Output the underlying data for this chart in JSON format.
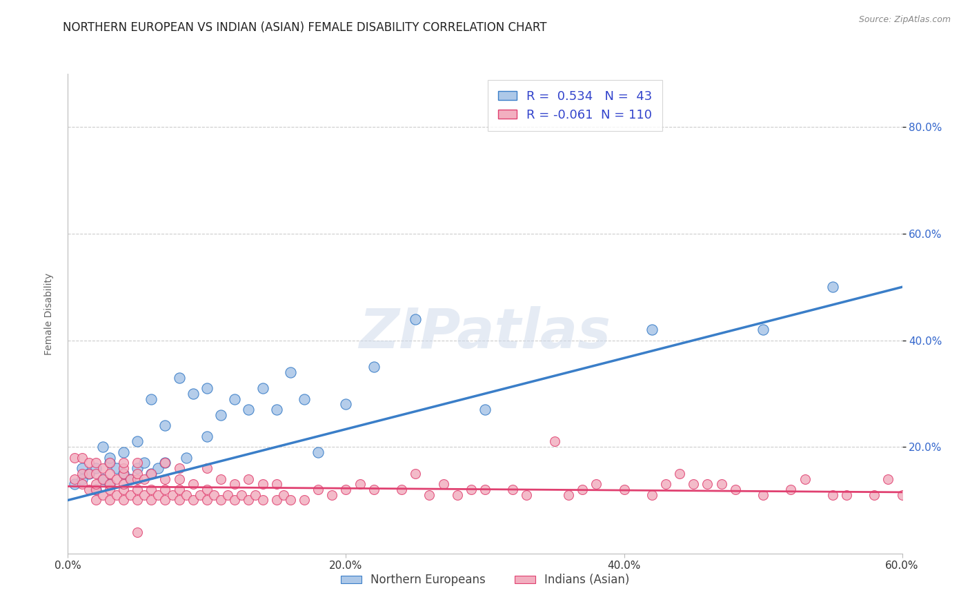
{
  "title": "NORTHERN EUROPEAN VS INDIAN (ASIAN) FEMALE DISABILITY CORRELATION CHART",
  "source_text": "Source: ZipAtlas.com",
  "ylabel": "Female Disability",
  "xlim": [
    0.0,
    0.6
  ],
  "ylim": [
    0.0,
    0.9
  ],
  "xtick_labels": [
    "0.0%",
    "",
    "20.0%",
    "",
    "40.0%",
    "",
    "60.0%"
  ],
  "xtick_vals": [
    0.0,
    0.1,
    0.2,
    0.3,
    0.4,
    0.5,
    0.6
  ],
  "ytick_labels": [
    "20.0%",
    "40.0%",
    "60.0%",
    "80.0%"
  ],
  "ytick_vals": [
    0.2,
    0.4,
    0.6,
    0.8
  ],
  "watermark": "ZIPatlas",
  "legend_label1": "Northern Europeans",
  "legend_label2": "Indians (Asian)",
  "R1": 0.534,
  "N1": 43,
  "R2": -0.061,
  "N2": 110,
  "color1": "#adc8e8",
  "color2": "#f2afc0",
  "line_color1": "#3a7ec8",
  "line_color2": "#e04070",
  "title_fontsize": 12,
  "axis_label_fontsize": 10,
  "tick_fontsize": 11,
  "background_color": "#ffffff",
  "grid_color": "#cccccc",
  "blue_scatter_x": [
    0.005,
    0.01,
    0.01,
    0.015,
    0.02,
    0.02,
    0.025,
    0.025,
    0.03,
    0.03,
    0.03,
    0.035,
    0.04,
    0.04,
    0.045,
    0.05,
    0.05,
    0.055,
    0.06,
    0.06,
    0.065,
    0.07,
    0.07,
    0.08,
    0.085,
    0.09,
    0.1,
    0.1,
    0.11,
    0.12,
    0.13,
    0.14,
    0.15,
    0.16,
    0.17,
    0.18,
    0.2,
    0.22,
    0.25,
    0.3,
    0.42,
    0.5,
    0.55
  ],
  "blue_scatter_y": [
    0.13,
    0.14,
    0.16,
    0.15,
    0.12,
    0.16,
    0.14,
    0.2,
    0.13,
    0.17,
    0.18,
    0.16,
    0.15,
    0.19,
    0.14,
    0.16,
    0.21,
    0.17,
    0.15,
    0.29,
    0.16,
    0.17,
    0.24,
    0.33,
    0.18,
    0.3,
    0.22,
    0.31,
    0.26,
    0.29,
    0.27,
    0.31,
    0.27,
    0.34,
    0.29,
    0.19,
    0.28,
    0.35,
    0.44,
    0.27,
    0.42,
    0.42,
    0.5
  ],
  "pink_scatter_x": [
    0.005,
    0.005,
    0.01,
    0.01,
    0.01,
    0.015,
    0.015,
    0.015,
    0.02,
    0.02,
    0.02,
    0.02,
    0.02,
    0.025,
    0.025,
    0.025,
    0.03,
    0.03,
    0.03,
    0.03,
    0.03,
    0.035,
    0.035,
    0.04,
    0.04,
    0.04,
    0.04,
    0.04,
    0.04,
    0.045,
    0.045,
    0.05,
    0.05,
    0.05,
    0.05,
    0.05,
    0.055,
    0.055,
    0.06,
    0.06,
    0.06,
    0.065,
    0.07,
    0.07,
    0.07,
    0.07,
    0.075,
    0.08,
    0.08,
    0.08,
    0.085,
    0.09,
    0.09,
    0.095,
    0.1,
    0.1,
    0.1,
    0.105,
    0.11,
    0.11,
    0.115,
    0.12,
    0.12,
    0.125,
    0.13,
    0.13,
    0.135,
    0.14,
    0.14,
    0.15,
    0.15,
    0.155,
    0.16,
    0.17,
    0.18,
    0.19,
    0.2,
    0.22,
    0.24,
    0.25,
    0.27,
    0.28,
    0.3,
    0.32,
    0.33,
    0.35,
    0.36,
    0.38,
    0.4,
    0.42,
    0.43,
    0.45,
    0.47,
    0.48,
    0.5,
    0.52,
    0.53,
    0.55,
    0.56,
    0.58,
    0.59,
    0.6,
    0.44,
    0.46,
    0.37,
    0.29,
    0.26,
    0.21,
    0.08,
    0.05
  ],
  "pink_scatter_y": [
    0.14,
    0.18,
    0.13,
    0.15,
    0.18,
    0.12,
    0.15,
    0.17,
    0.1,
    0.12,
    0.13,
    0.15,
    0.17,
    0.11,
    0.14,
    0.16,
    0.1,
    0.12,
    0.13,
    0.15,
    0.17,
    0.11,
    0.14,
    0.1,
    0.12,
    0.13,
    0.15,
    0.16,
    0.17,
    0.11,
    0.14,
    0.1,
    0.12,
    0.14,
    0.15,
    0.17,
    0.11,
    0.14,
    0.1,
    0.12,
    0.15,
    0.11,
    0.1,
    0.12,
    0.14,
    0.17,
    0.11,
    0.1,
    0.12,
    0.14,
    0.11,
    0.1,
    0.13,
    0.11,
    0.1,
    0.12,
    0.16,
    0.11,
    0.1,
    0.14,
    0.11,
    0.1,
    0.13,
    0.11,
    0.1,
    0.14,
    0.11,
    0.1,
    0.13,
    0.1,
    0.13,
    0.11,
    0.1,
    0.1,
    0.12,
    0.11,
    0.12,
    0.12,
    0.12,
    0.15,
    0.13,
    0.11,
    0.12,
    0.12,
    0.11,
    0.21,
    0.11,
    0.13,
    0.12,
    0.11,
    0.13,
    0.13,
    0.13,
    0.12,
    0.11,
    0.12,
    0.14,
    0.11,
    0.11,
    0.11,
    0.14,
    0.11,
    0.15,
    0.13,
    0.12,
    0.12,
    0.11,
    0.13,
    0.16,
    0.04
  ],
  "blue_trendline_x": [
    0.0,
    0.6
  ],
  "blue_trendline_y_start": 0.1,
  "blue_trendline_y_end": 0.5,
  "pink_trendline_y_start": 0.126,
  "pink_trendline_y_end": 0.115
}
